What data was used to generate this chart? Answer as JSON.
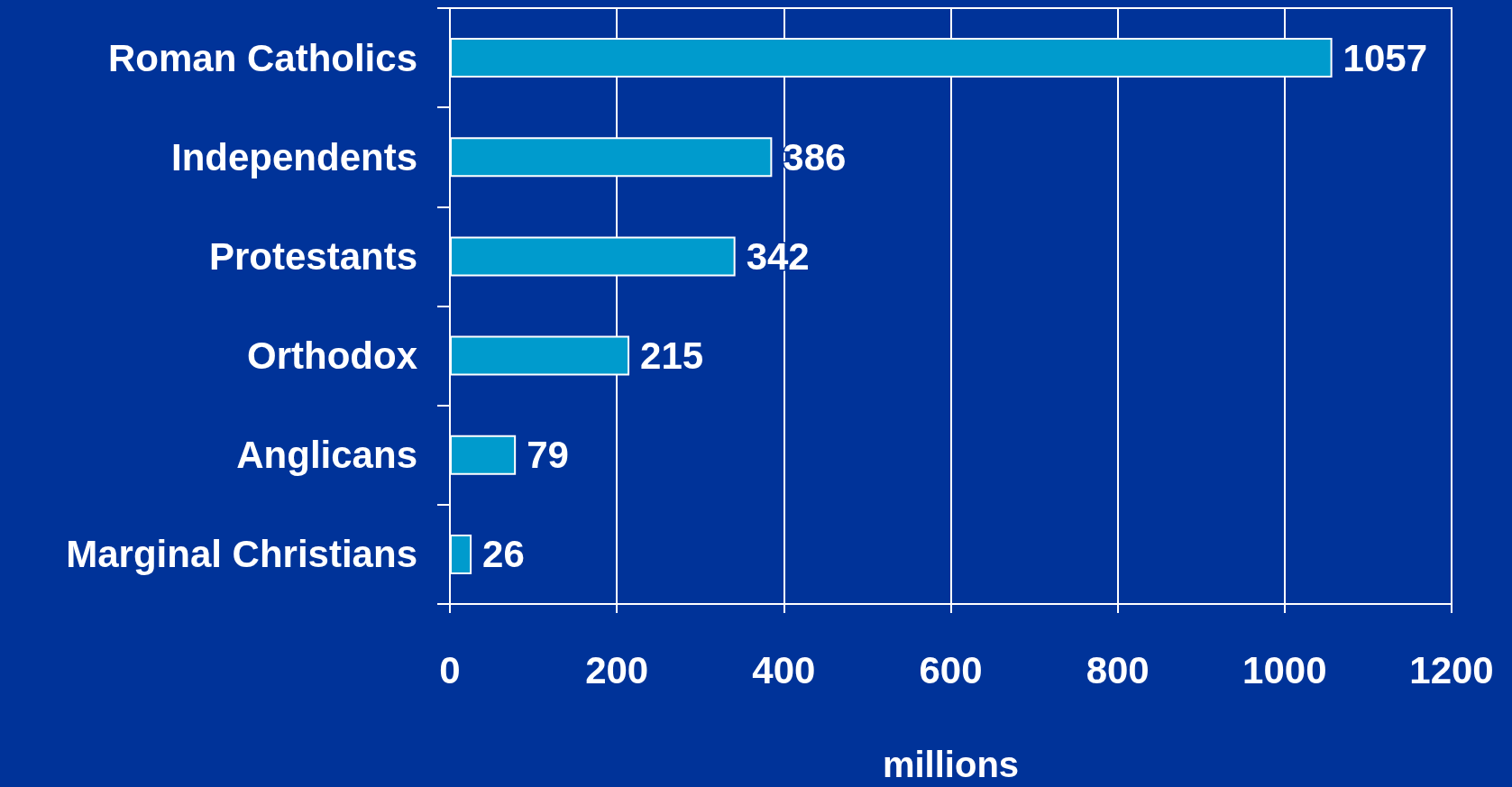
{
  "chart_data": {
    "type": "bar",
    "orientation": "horizontal",
    "categories": [
      "Roman Catholics",
      "Independents",
      "Protestants",
      "Orthodox",
      "Anglicans",
      "Marginal Christians"
    ],
    "values": [
      1057,
      386,
      342,
      215,
      79,
      26
    ],
    "color": "#009bcd",
    "xlim": [
      0,
      1200
    ],
    "xticks": [
      0,
      200,
      400,
      600,
      800,
      {
        "value": 1000,
        "label": "1000"
      },
      {
        "value": 1200,
        "label": "1200"
      }
    ],
    "xlabel": "millions",
    "grid": "x",
    "data_labels": true
  }
}
